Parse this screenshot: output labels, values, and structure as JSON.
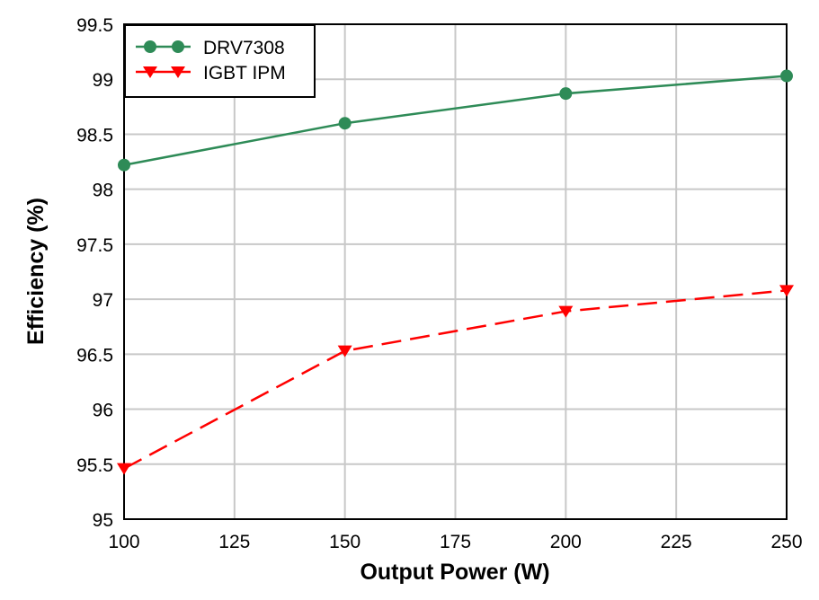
{
  "chart_data": {
    "type": "line",
    "title": "",
    "xlabel": "Output Power (W)",
    "ylabel": "Efficiency (%)",
    "xlim": [
      100,
      250
    ],
    "ylim": [
      95,
      99.5
    ],
    "xticks": [
      "100",
      "125",
      "150",
      "175",
      "200",
      "225",
      "250"
    ],
    "yticks": [
      "95",
      "95.5",
      "96",
      "96.5",
      "97",
      "97.5",
      "98",
      "98.5",
      "99",
      "99.5"
    ],
    "grid": true,
    "legend_position": "top-left",
    "x": [
      100,
      150,
      200,
      250
    ],
    "series": [
      {
        "name": "DRV7308",
        "values": [
          98.22,
          98.6,
          98.87,
          99.03
        ],
        "color": "#2e8b57",
        "marker": "circle",
        "line": "solid"
      },
      {
        "name": "IGBT IPM",
        "values": [
          95.46,
          96.53,
          96.89,
          97.08
        ],
        "color": "#ff0000",
        "marker": "triangle-down",
        "line": "dashed"
      }
    ]
  }
}
